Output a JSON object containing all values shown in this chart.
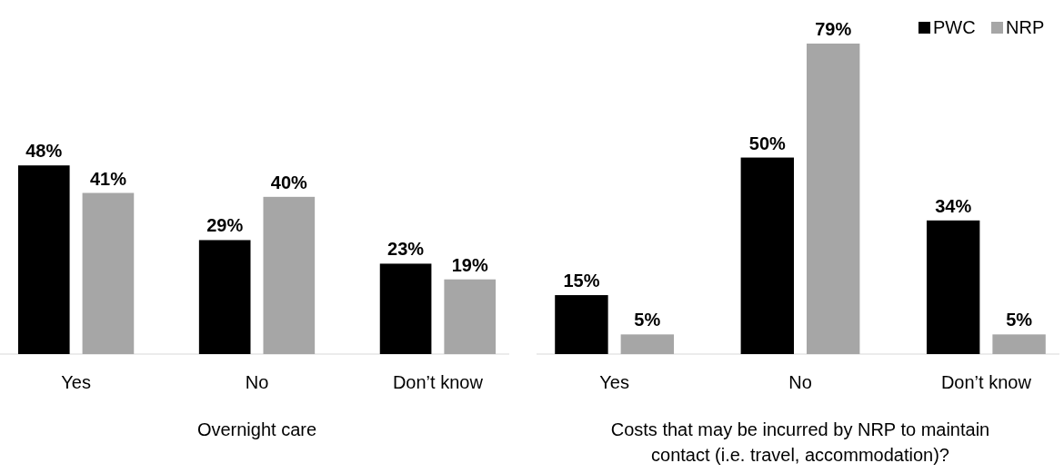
{
  "chart_data": [
    {
      "type": "bar",
      "xlabel": "Overnight care",
      "categories": [
        "Yes",
        "No",
        "Don’t know"
      ],
      "series": [
        {
          "color": "#000000",
          "values": [
            48,
            29,
            23
          ],
          "value_labels": [
            "48%",
            "29%",
            "23%"
          ]
        },
        {
          "color": "#a6a6a6",
          "values": [
            41,
            40,
            19
          ],
          "value_labels": [
            "41%",
            "40%",
            "19%"
          ]
        }
      ],
      "legend": false
    },
    {
      "type": "bar",
      "xlabel": "Costs that may be incurred by NRP to maintain contact (i.e. travel, accommodation)?",
      "categories": [
        "Yes",
        "No",
        "Don’t know"
      ],
      "series": [
        {
          "name": "PWC",
          "color": "#000000",
          "values": [
            15,
            50,
            34
          ],
          "value_labels": [
            "15%",
            "50%",
            "34%"
          ]
        },
        {
          "name": "NRP",
          "color": "#a6a6a6",
          "values": [
            5,
            79,
            5
          ],
          "value_labels": [
            "5%",
            "79%",
            "5%"
          ]
        }
      ],
      "legend": "top right"
    }
  ]
}
